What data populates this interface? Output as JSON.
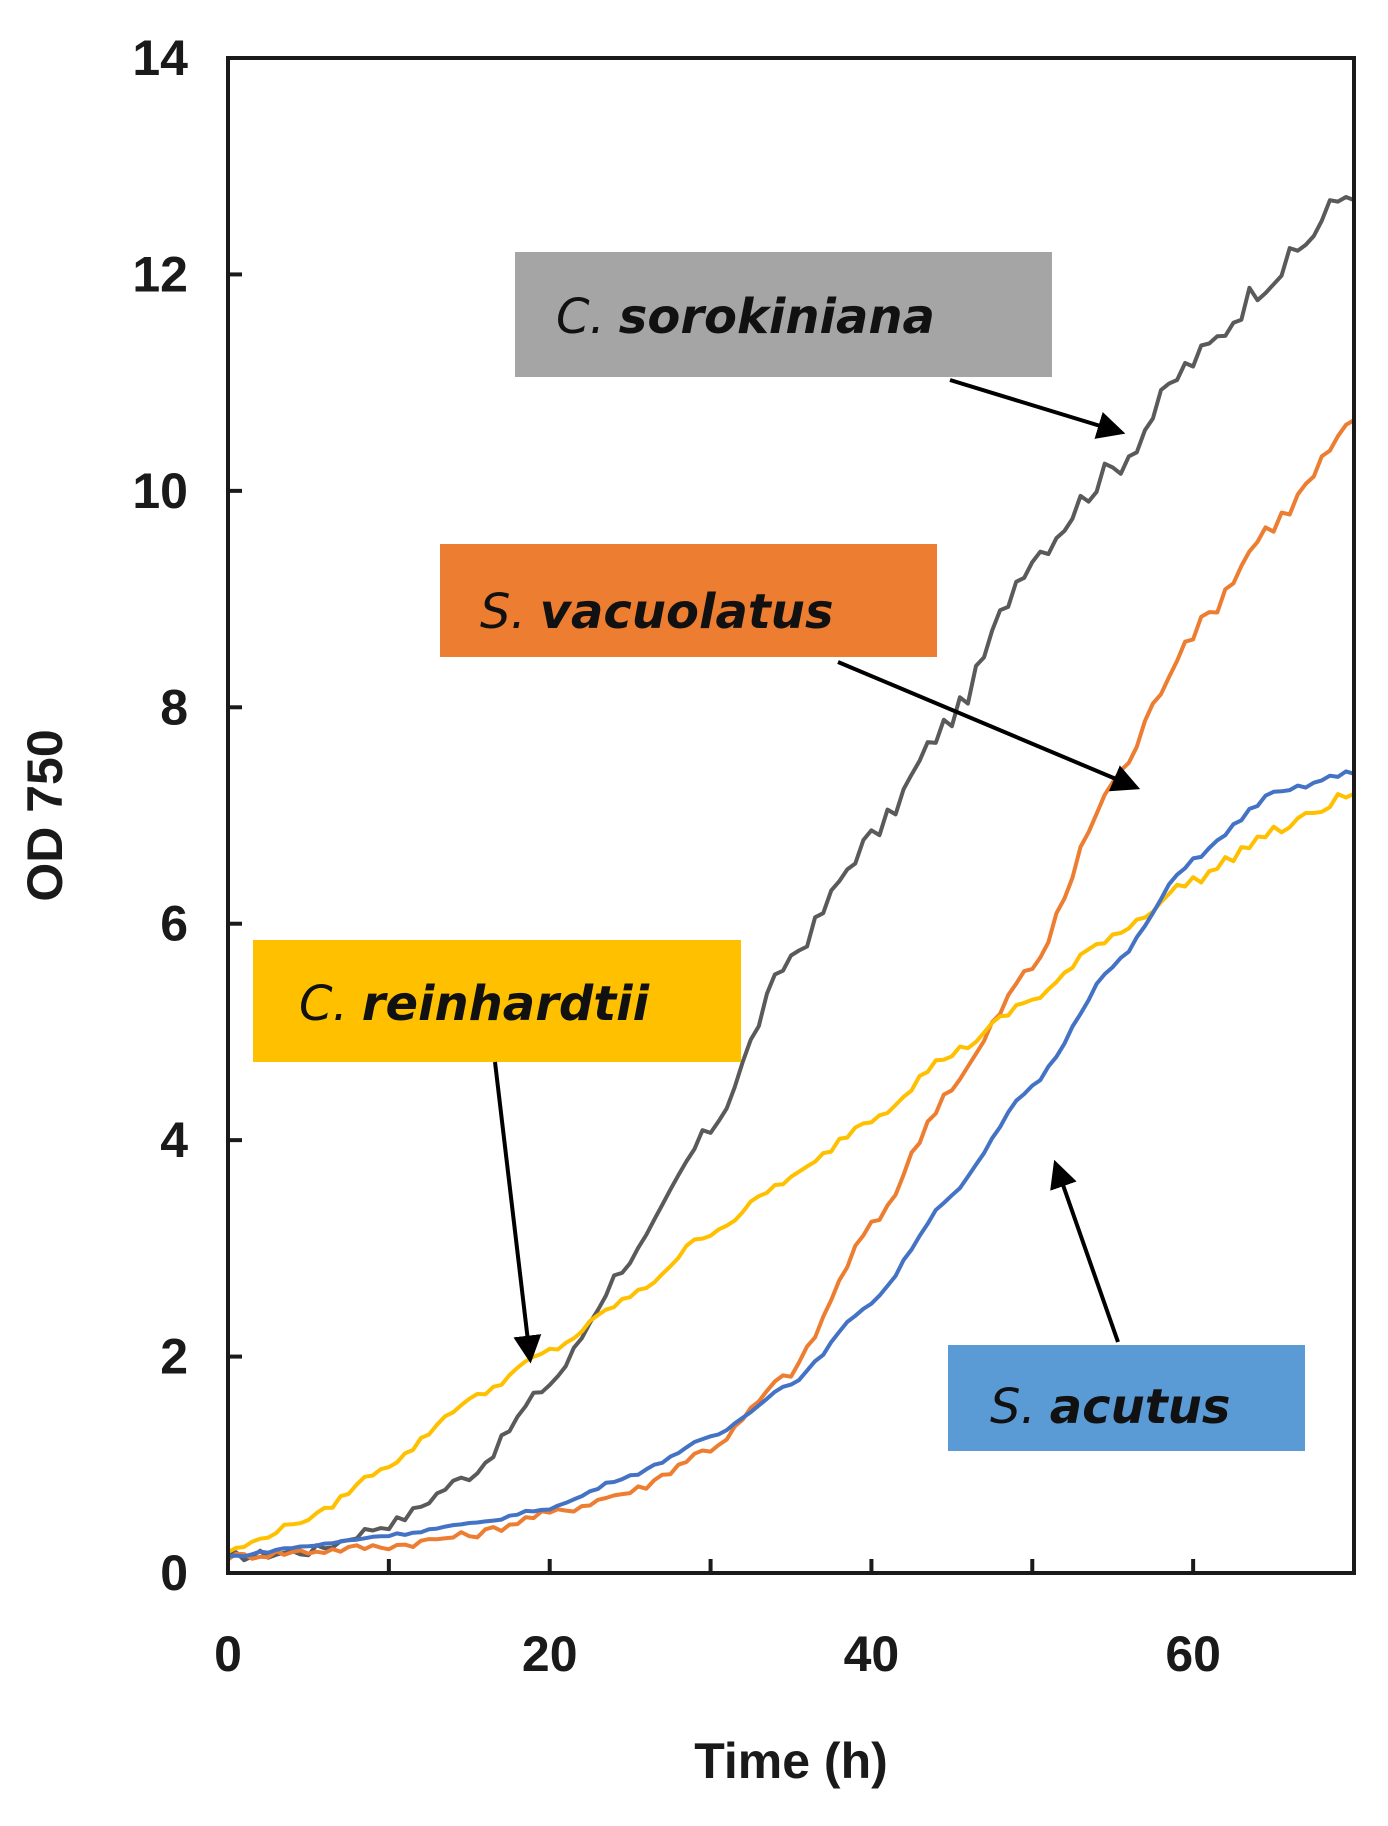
{
  "chart_data": {
    "type": "line",
    "title": "",
    "xlabel": "Time (h)",
    "ylabel": "OD 750",
    "xlim": [
      0,
      70
    ],
    "ylim": [
      0,
      14
    ],
    "x_ticks": [
      0,
      20,
      40,
      60
    ],
    "y_ticks": [
      0,
      2,
      4,
      6,
      8,
      10,
      12,
      14
    ],
    "x_tick_labels": [
      "0",
      "20",
      "40",
      "60"
    ],
    "y_tick_labels": [
      "0",
      "2",
      "4",
      "6",
      "8",
      "10",
      "12",
      "14"
    ],
    "grid": false,
    "x": [
      0,
      5,
      10,
      15,
      20,
      25,
      30,
      35,
      40,
      45,
      50,
      55,
      60,
      65,
      70
    ],
    "series": [
      {
        "name": "C. sorokiniana",
        "name_prefix": "C.",
        "name_main": "sorokiniana",
        "color": "#5a5a5a",
        "label_bg": "#a5a5a5",
        "values": [
          0.15,
          0.2,
          0.45,
          0.9,
          1.75,
          2.9,
          4.1,
          5.7,
          6.8,
          7.9,
          9.4,
          10.2,
          11.2,
          12.0,
          12.8
        ]
      },
      {
        "name": "S. vacuolatus",
        "name_prefix": "S.",
        "name_main": "vacuolatus",
        "color": "#ed7d31",
        "label_bg": "#ed7d31",
        "values": [
          0.15,
          0.2,
          0.25,
          0.35,
          0.55,
          0.75,
          1.15,
          1.85,
          3.2,
          4.5,
          5.6,
          7.3,
          8.7,
          9.7,
          10.6
        ]
      },
      {
        "name": "C. reinhardtii",
        "name_prefix": "C.",
        "name_main": "reinhardtii",
        "color": "#ffc000",
        "label_bg": "#ffc000",
        "values": [
          0.2,
          0.5,
          1.0,
          1.6,
          2.05,
          2.55,
          3.15,
          3.65,
          4.2,
          4.8,
          5.3,
          5.9,
          6.4,
          6.85,
          7.2
        ]
      },
      {
        "name": "S. acutus",
        "name_prefix": "S.",
        "name_main": "acutus",
        "color": "#4472c4",
        "label_bg": "#5b9bd5",
        "values": [
          0.15,
          0.25,
          0.35,
          0.45,
          0.6,
          0.9,
          1.25,
          1.75,
          2.5,
          3.5,
          4.5,
          5.6,
          6.6,
          7.2,
          7.4
        ]
      }
    ]
  }
}
